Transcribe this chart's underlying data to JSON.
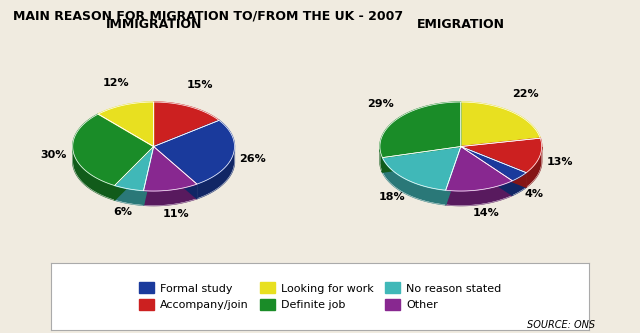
{
  "title": "MAIN REASON FOR MIGRATION TO/FROM THE UK - 2007",
  "left_title": "IMMIGRATION",
  "right_title": "EMIGRATION",
  "source": "SOURCE: ONS",
  "background_color": "#f0ebe0",
  "legend_background": "#ffffff",
  "colors_order": [
    "blue",
    "red",
    "yellow",
    "green",
    "teal",
    "purple"
  ],
  "colors": {
    "blue": "#1a3a9c",
    "red": "#cc2020",
    "yellow": "#e8e020",
    "green": "#1a8c28",
    "teal": "#40b8b8",
    "purple": "#882890"
  },
  "immigration_slices": [
    {
      "label": "Accompany/join",
      "color": "red",
      "pct": 15,
      "pct_str": "15%"
    },
    {
      "label": "Formal study",
      "color": "blue",
      "pct": 26,
      "pct_str": "26%"
    },
    {
      "label": "Other",
      "color": "purple",
      "pct": 11,
      "pct_str": "11%"
    },
    {
      "label": "No reason stated",
      "color": "teal",
      "pct": 6,
      "pct_str": "6%"
    },
    {
      "label": "Definite job",
      "color": "green",
      "pct": 30,
      "pct_str": "30%"
    },
    {
      "label": "Looking for work",
      "color": "yellow",
      "pct": 12,
      "pct_str": "12%"
    }
  ],
  "emigration_slices": [
    {
      "label": "Looking for work",
      "color": "yellow",
      "pct": 22,
      "pct_str": "22%"
    },
    {
      "label": "Accompany/join",
      "color": "red",
      "pct": 13,
      "pct_str": "13%"
    },
    {
      "label": "Formal study",
      "color": "blue",
      "pct": 4,
      "pct_str": "4%"
    },
    {
      "label": "Other",
      "color": "purple",
      "pct": 14,
      "pct_str": "14%"
    },
    {
      "label": "No reason stated",
      "color": "teal",
      "pct": 18,
      "pct_str": "18%"
    },
    {
      "label": "Definite job",
      "color": "green",
      "pct": 29,
      "pct_str": "29%"
    }
  ],
  "legend_entries": [
    {
      "label": "Formal study",
      "color": "blue"
    },
    {
      "label": "Accompany/join",
      "color": "red"
    },
    {
      "label": "Looking for work",
      "color": "yellow"
    },
    {
      "label": "Definite job",
      "color": "green"
    },
    {
      "label": "No reason stated",
      "color": "teal"
    },
    {
      "label": "Other",
      "color": "purple"
    }
  ]
}
